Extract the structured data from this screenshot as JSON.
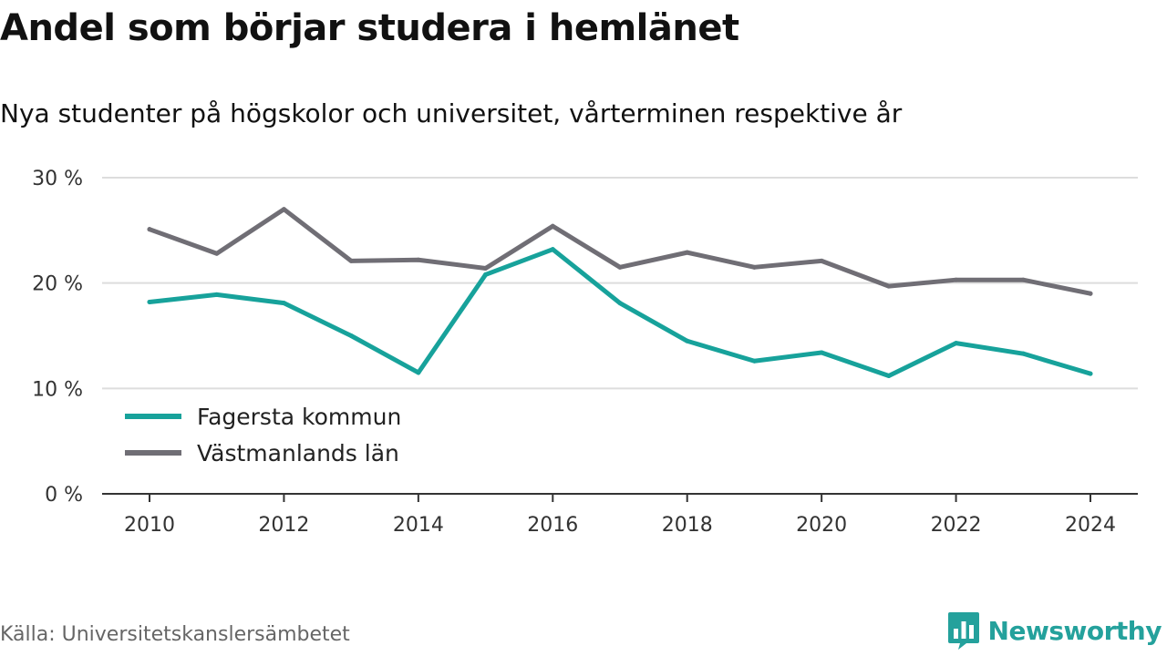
{
  "header": {
    "title": "Andel som börjar studera i hemlänet",
    "subtitle": "Nya studenter på högskolor och universitet, vårterminen respektive år"
  },
  "footer": {
    "source": "Källa: Universitetskanslersämbetet",
    "brand": "Newsworthy"
  },
  "icons": {
    "brand_logo": "bar-chart-speech-bubble-icon"
  },
  "colors": {
    "fagersta": "#17a29b",
    "vastmanland": "#706e75",
    "grid": "#dddddd",
    "axis": "#333333",
    "brand": "#24a19c"
  },
  "chart_data": {
    "type": "line",
    "x": [
      2010,
      2011,
      2012,
      2013,
      2014,
      2015,
      2016,
      2017,
      2018,
      2019,
      2020,
      2021,
      2022,
      2023,
      2024
    ],
    "xticks": [
      2010,
      2012,
      2014,
      2016,
      2018,
      2020,
      2022,
      2024
    ],
    "xtick_labels": [
      "2010",
      "2012",
      "2014",
      "2016",
      "2018",
      "2020",
      "2022",
      "2024"
    ],
    "yticks": [
      0,
      10,
      20,
      30
    ],
    "ytick_labels": [
      "0 %",
      "10 %",
      "20 %",
      "30 %"
    ],
    "ylim": [
      0,
      30
    ],
    "grid": true,
    "legend_position": "bottom-left",
    "series": [
      {
        "name": "Fagersta kommun",
        "color": "#17a29b",
        "values": [
          18.2,
          18.9,
          18.1,
          15.0,
          11.5,
          20.8,
          23.2,
          18.1,
          14.5,
          12.6,
          13.4,
          11.2,
          14.3,
          13.3,
          11.4
        ]
      },
      {
        "name": "Västmanlands län",
        "color": "#706e75",
        "values": [
          25.1,
          22.8,
          27.0,
          22.1,
          22.2,
          21.4,
          25.4,
          21.5,
          22.9,
          21.5,
          22.1,
          19.7,
          20.3,
          20.3,
          19.0
        ]
      }
    ]
  }
}
